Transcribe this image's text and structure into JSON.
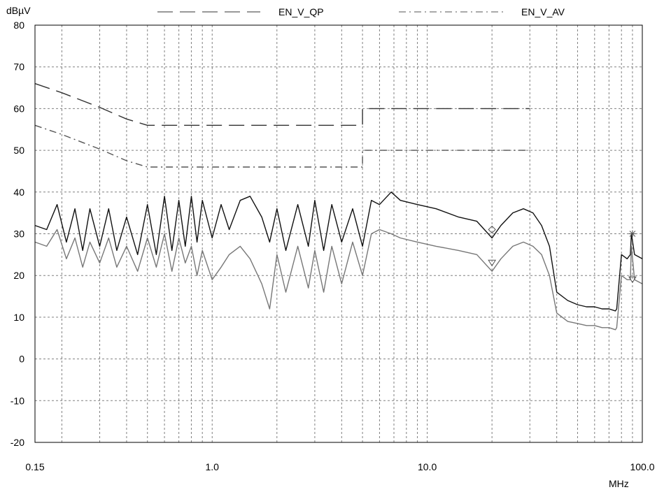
{
  "chart_data": {
    "type": "line",
    "x_scale": "log",
    "xlim": [
      0.15,
      100.0
    ],
    "ylim": [
      -20,
      80
    ],
    "y_unit": "dBµV",
    "x_unit": "MHz",
    "x_tick_labels": [
      {
        "value": 0.15,
        "label": "0.15"
      },
      {
        "value": 1.0,
        "label": "1.0"
      },
      {
        "value": 10.0,
        "label": "10.0"
      },
      {
        "value": 100.0,
        "label": "100.0"
      }
    ],
    "y_tick_labels": [
      "80",
      "70",
      "60",
      "50",
      "40",
      "30",
      "20",
      "10",
      "0",
      "-10",
      "-20"
    ],
    "grid": true,
    "legend": {
      "placement": "top",
      "entries": [
        {
          "name": "EN_V_QP",
          "dash": "long"
        },
        {
          "name": "EN_V_AV",
          "dash": "dash-dot"
        }
      ]
    },
    "series": [
      {
        "name": "EN_V_QP",
        "style": "long-dash",
        "color": "#333333",
        "x": [
          0.15,
          0.2,
          0.3,
          0.4,
          0.5,
          1.0,
          2.0,
          3.0,
          4.0,
          5.0,
          5.0,
          10.0,
          20.0,
          30.0
        ],
        "y": [
          66,
          63.8,
          60.3,
          57.5,
          56,
          56,
          56,
          56,
          56,
          56,
          60,
          60,
          60,
          60
        ]
      },
      {
        "name": "EN_V_AV",
        "style": "dash-dot",
        "color": "#555555",
        "x": [
          0.15,
          0.2,
          0.3,
          0.4,
          0.5,
          1.0,
          2.0,
          3.0,
          4.0,
          5.0,
          5.0,
          10.0,
          20.0,
          30.0
        ],
        "y": [
          56,
          53.8,
          50.3,
          47.5,
          46,
          46,
          46,
          46,
          46,
          46,
          50,
          50,
          50,
          50
        ]
      },
      {
        "style": "solid",
        "color": "#111111",
        "x": [
          0.15,
          0.17,
          0.19,
          0.21,
          0.23,
          0.25,
          0.27,
          0.3,
          0.33,
          0.36,
          0.4,
          0.45,
          0.5,
          0.55,
          0.6,
          0.65,
          0.7,
          0.75,
          0.8,
          0.85,
          0.9,
          1.0,
          1.1,
          1.2,
          1.35,
          1.5,
          1.7,
          1.85,
          2.0,
          2.2,
          2.5,
          2.8,
          3.0,
          3.3,
          3.6,
          4.0,
          4.5,
          5.0,
          5.5,
          6.0,
          6.8,
          7.5,
          9.0,
          11.0,
          14.0,
          17.0,
          20.0,
          22.0,
          25.0,
          28.0,
          31.0,
          34.0,
          37.0,
          40.0,
          45.0,
          50.0,
          55.0,
          60.0,
          65.0,
          70.0,
          75.0,
          76.0,
          80.0,
          85.0,
          88.0,
          89.0,
          92.0,
          100.0
        ],
        "y": [
          32,
          31,
          37,
          28,
          36,
          26,
          36,
          27,
          36,
          26,
          34,
          25,
          37,
          25,
          39,
          26,
          38,
          27,
          39,
          28,
          38,
          29,
          37,
          31,
          38,
          39,
          34,
          28,
          36,
          26,
          37,
          27,
          38,
          26,
          37,
          28,
          36,
          27,
          38,
          37,
          40,
          38,
          37,
          36,
          34,
          33,
          29,
          32,
          35,
          36,
          35,
          32,
          27,
          16,
          14,
          13,
          12.5,
          12.5,
          12,
          12,
          11.5,
          12,
          25,
          24,
          25,
          30,
          25,
          24
        ]
      },
      {
        "style": "solid",
        "color": "#777777",
        "x": [
          0.15,
          0.17,
          0.19,
          0.21,
          0.23,
          0.25,
          0.27,
          0.3,
          0.33,
          0.36,
          0.4,
          0.45,
          0.5,
          0.55,
          0.6,
          0.65,
          0.7,
          0.75,
          0.8,
          0.85,
          0.9,
          1.0,
          1.1,
          1.2,
          1.35,
          1.5,
          1.7,
          1.85,
          2.0,
          2.2,
          2.5,
          2.8,
          3.0,
          3.3,
          3.6,
          4.0,
          4.5,
          5.0,
          5.5,
          6.0,
          6.8,
          7.5,
          9.0,
          11.0,
          14.0,
          17.0,
          20.0,
          22.0,
          25.0,
          28.0,
          31.0,
          34.0,
          37.0,
          40.0,
          45.0,
          50.0,
          55.0,
          60.0,
          65.0,
          70.0,
          75.0,
          76.0,
          80.0,
          85.0,
          88.0,
          89.0,
          92.0,
          100.0
        ],
        "y": [
          28,
          27,
          31,
          24,
          29,
          22,
          28,
          23,
          29,
          22,
          27,
          21,
          29,
          22,
          30,
          21,
          29,
          23,
          27,
          20,
          26,
          19,
          22,
          25,
          27,
          24,
          18,
          12,
          25,
          16,
          27,
          17,
          26,
          16,
          27,
          18,
          28,
          20,
          30,
          31,
          30,
          29,
          28,
          27,
          26,
          25,
          21,
          24,
          27,
          28,
          27,
          25,
          20,
          11,
          9,
          8.5,
          8,
          8,
          7.5,
          7.5,
          7,
          7.5,
          20,
          19,
          19,
          27,
          19,
          18
        ]
      }
    ],
    "markers": [
      {
        "shape": "diamond",
        "x": 20.0,
        "y": 31
      },
      {
        "shape": "triangle-down",
        "x": 20.0,
        "y": 23
      },
      {
        "shape": "asterisk",
        "x": 90.0,
        "y": 30
      },
      {
        "shape": "triangle-down",
        "x": 90.0,
        "y": 19
      }
    ]
  }
}
